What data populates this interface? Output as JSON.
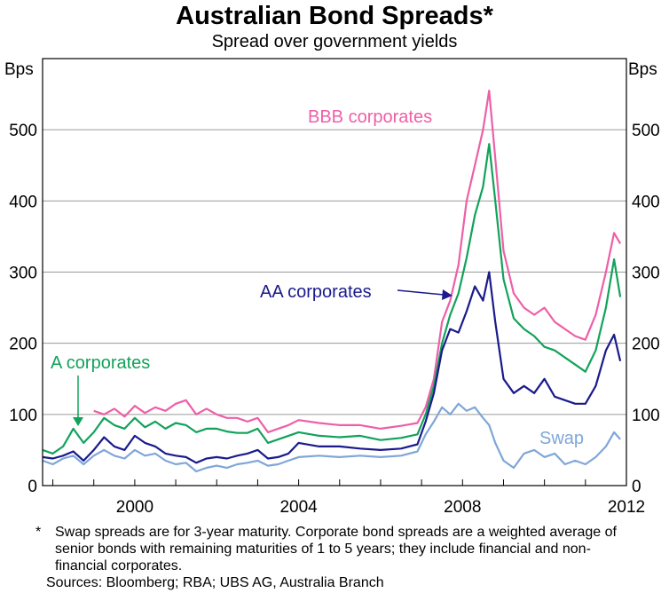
{
  "chart_data": {
    "type": "line",
    "title": "Australian Bond Spreads*",
    "subtitle": "Spread over government yields",
    "ylabel": "Bps",
    "ylim": [
      0,
      600
    ],
    "yticks": [
      0,
      100,
      200,
      300,
      400,
      500
    ],
    "xlim": [
      1997.75,
      2012.0
    ],
    "xticks": [
      2000,
      2004,
      2008,
      2012
    ],
    "grid": true,
    "series": [
      {
        "name": "BBB corporates",
        "color": "#ee5fa7",
        "x": [
          1999.0,
          1999.25,
          1999.5,
          1999.75,
          2000.0,
          2000.25,
          2000.5,
          2000.75,
          2001.0,
          2001.25,
          2001.5,
          2001.75,
          2002.0,
          2002.25,
          2002.5,
          2002.75,
          2003.0,
          2003.25,
          2003.5,
          2003.75,
          2004.0,
          2004.5,
          2005.0,
          2005.5,
          2006.0,
          2006.5,
          2006.9,
          2007.1,
          2007.3,
          2007.5,
          2007.7,
          2007.9,
          2008.1,
          2008.3,
          2008.5,
          2008.65,
          2008.8,
          2009.0,
          2009.25,
          2009.5,
          2009.75,
          2010.0,
          2010.25,
          2010.5,
          2010.75,
          2011.0,
          2011.25,
          2011.5,
          2011.7,
          2011.85
        ],
        "values": [
          105,
          100,
          108,
          97,
          112,
          102,
          110,
          105,
          115,
          120,
          100,
          108,
          100,
          95,
          95,
          90,
          95,
          75,
          80,
          85,
          92,
          88,
          85,
          85,
          80,
          84,
          88,
          110,
          150,
          230,
          260,
          310,
          400,
          450,
          500,
          555,
          460,
          330,
          270,
          250,
          240,
          250,
          230,
          220,
          210,
          205,
          240,
          300,
          355,
          340
        ]
      },
      {
        "name": "A corporates",
        "color": "#12a25a",
        "x": [
          1997.75,
          1998.0,
          1998.25,
          1998.5,
          1998.75,
          1999.0,
          1999.25,
          1999.5,
          1999.75,
          2000.0,
          2000.25,
          2000.5,
          2000.75,
          2001.0,
          2001.25,
          2001.5,
          2001.75,
          2002.0,
          2002.25,
          2002.5,
          2002.75,
          2003.0,
          2003.25,
          2003.5,
          2003.75,
          2004.0,
          2004.5,
          2005.0,
          2005.5,
          2006.0,
          2006.5,
          2006.9,
          2007.1,
          2007.3,
          2007.5,
          2007.7,
          2007.9,
          2008.1,
          2008.3,
          2008.5,
          2008.65,
          2008.8,
          2009.0,
          2009.25,
          2009.5,
          2009.75,
          2010.0,
          2010.25,
          2010.5,
          2010.75,
          2011.0,
          2011.25,
          2011.5,
          2011.7,
          2011.85
        ],
        "values": [
          50,
          45,
          55,
          80,
          60,
          75,
          95,
          85,
          80,
          95,
          82,
          90,
          80,
          88,
          85,
          75,
          80,
          80,
          76,
          74,
          74,
          80,
          60,
          65,
          70,
          75,
          70,
          68,
          70,
          64,
          67,
          72,
          100,
          140,
          200,
          240,
          270,
          320,
          380,
          420,
          480,
          400,
          290,
          235,
          220,
          210,
          195,
          190,
          180,
          170,
          160,
          190,
          250,
          318,
          265
        ]
      },
      {
        "name": "AA corporates",
        "color": "#1a1a8c",
        "x": [
          1997.75,
          1998.0,
          1998.25,
          1998.5,
          1998.75,
          1999.0,
          1999.25,
          1999.5,
          1999.75,
          2000.0,
          2000.25,
          2000.5,
          2000.75,
          2001.0,
          2001.25,
          2001.5,
          2001.75,
          2002.0,
          2002.25,
          2002.5,
          2002.75,
          2003.0,
          2003.25,
          2003.5,
          2003.75,
          2004.0,
          2004.5,
          2005.0,
          2005.5,
          2006.0,
          2006.5,
          2006.9,
          2007.1,
          2007.3,
          2007.5,
          2007.7,
          2007.9,
          2008.1,
          2008.3,
          2008.5,
          2008.65,
          2008.8,
          2009.0,
          2009.25,
          2009.5,
          2009.75,
          2010.0,
          2010.25,
          2010.5,
          2010.75,
          2011.0,
          2011.25,
          2011.5,
          2011.7,
          2011.85
        ],
        "values": [
          40,
          38,
          42,
          48,
          35,
          50,
          68,
          55,
          50,
          70,
          60,
          55,
          45,
          42,
          40,
          32,
          38,
          40,
          38,
          42,
          45,
          50,
          38,
          40,
          45,
          60,
          55,
          55,
          52,
          50,
          52,
          58,
          90,
          130,
          190,
          220,
          215,
          245,
          280,
          260,
          300,
          230,
          150,
          130,
          140,
          130,
          150,
          125,
          120,
          115,
          115,
          140,
          190,
          212,
          175
        ]
      },
      {
        "name": "Swap",
        "color": "#7fa6d8",
        "x": [
          1997.75,
          1998.0,
          1998.25,
          1998.5,
          1998.75,
          1999.0,
          1999.25,
          1999.5,
          1999.75,
          2000.0,
          2000.25,
          2000.5,
          2000.75,
          2001.0,
          2001.25,
          2001.5,
          2001.75,
          2002.0,
          2002.25,
          2002.5,
          2002.75,
          2003.0,
          2003.25,
          2003.5,
          2003.75,
          2004.0,
          2004.5,
          2005.0,
          2005.5,
          2006.0,
          2006.5,
          2006.9,
          2007.1,
          2007.3,
          2007.5,
          2007.7,
          2007.9,
          2008.1,
          2008.3,
          2008.5,
          2008.65,
          2008.8,
          2009.0,
          2009.25,
          2009.5,
          2009.75,
          2010.0,
          2010.25,
          2010.5,
          2010.75,
          2011.0,
          2011.25,
          2011.5,
          2011.7,
          2011.85
        ],
        "values": [
          35,
          30,
          38,
          42,
          30,
          42,
          50,
          42,
          38,
          50,
          42,
          45,
          35,
          30,
          32,
          20,
          25,
          28,
          25,
          30,
          32,
          35,
          28,
          30,
          35,
          40,
          42,
          40,
          42,
          40,
          42,
          48,
          72,
          90,
          110,
          100,
          115,
          105,
          110,
          95,
          85,
          60,
          35,
          25,
          45,
          50,
          40,
          45,
          30,
          35,
          30,
          40,
          55,
          75,
          65
        ]
      }
    ],
    "annotations": [
      {
        "text": "BBB corporates"
      },
      {
        "text": "A corporates"
      },
      {
        "text": "AA corporates"
      },
      {
        "text": "Swap"
      }
    ]
  },
  "footnote": {
    "mark": "*",
    "text": "Swap spreads are for 3-year maturity. Corporate bond spreads are a weighted average of senior bonds with remaining maturities of 1 to 5 years; they include financial and non-financial corporates.",
    "sources": "Sources: Bloomberg; RBA; UBS AG, Australia Branch"
  }
}
